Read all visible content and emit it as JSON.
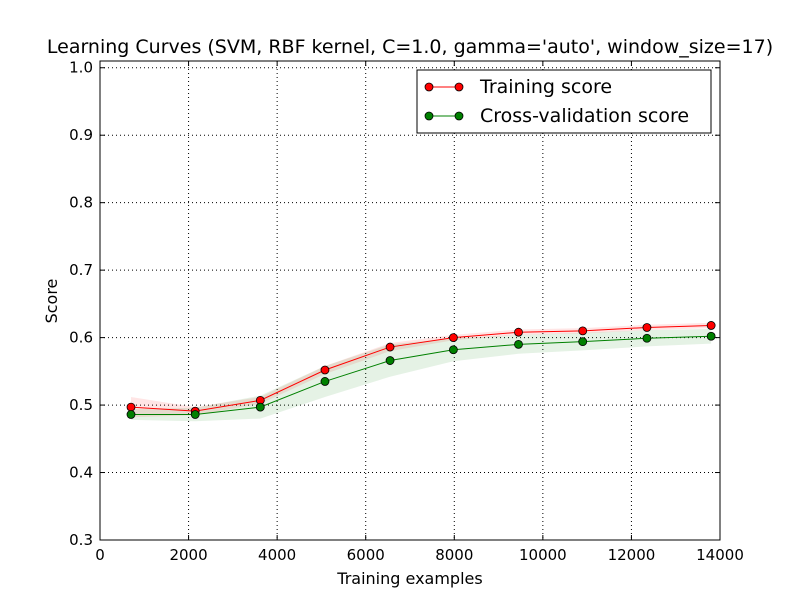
{
  "chart_data": {
    "type": "line",
    "title": "Learning Curves (SVM, RBF kernel, C=1.0, gamma='auto', window_size=17)",
    "xlabel": "Training examples",
    "ylabel": "Score",
    "xlim": [
      0,
      14000
    ],
    "ylim": [
      0.3,
      1.01
    ],
    "x_ticks": [
      0,
      2000,
      4000,
      6000,
      8000,
      10000,
      12000,
      14000
    ],
    "x_tick_labels": [
      "0",
      "2000",
      "4000",
      "6000",
      "8000",
      "10000",
      "12000",
      "14000"
    ],
    "y_ticks": [
      0.3,
      0.4,
      0.5,
      0.6,
      0.7,
      0.8,
      0.9,
      1.0
    ],
    "y_tick_labels": [
      "0.3",
      "0.4",
      "0.5",
      "0.6",
      "0.7",
      "0.8",
      "0.9",
      "1.0"
    ],
    "grid": true,
    "legend_position": "top-right",
    "x": [
      700,
      2150,
      3620,
      5080,
      6550,
      7980,
      9450,
      10900,
      12350,
      13800
    ],
    "series": [
      {
        "name": "Training score",
        "color": "#ff0000",
        "values": [
          0.497,
          0.491,
          0.507,
          0.552,
          0.586,
          0.6,
          0.608,
          0.61,
          0.615,
          0.618
        ],
        "band_lower": [
          0.482,
          0.485,
          0.502,
          0.546,
          0.58,
          0.596,
          0.604,
          0.606,
          0.611,
          0.614
        ],
        "band_upper": [
          0.512,
          0.497,
          0.512,
          0.558,
          0.592,
          0.604,
          0.612,
          0.614,
          0.619,
          0.622
        ]
      },
      {
        "name": "Cross-validation score",
        "color": "#008000",
        "values": [
          0.486,
          0.486,
          0.497,
          0.535,
          0.566,
          0.582,
          0.59,
          0.594,
          0.599,
          0.602
        ],
        "band_lower": [
          0.478,
          0.476,
          0.48,
          0.512,
          0.542,
          0.565,
          0.576,
          0.581,
          0.587,
          0.591
        ],
        "band_upper": [
          0.494,
          0.496,
          0.514,
          0.558,
          0.59,
          0.599,
          0.604,
          0.607,
          0.611,
          0.613
        ]
      }
    ]
  }
}
